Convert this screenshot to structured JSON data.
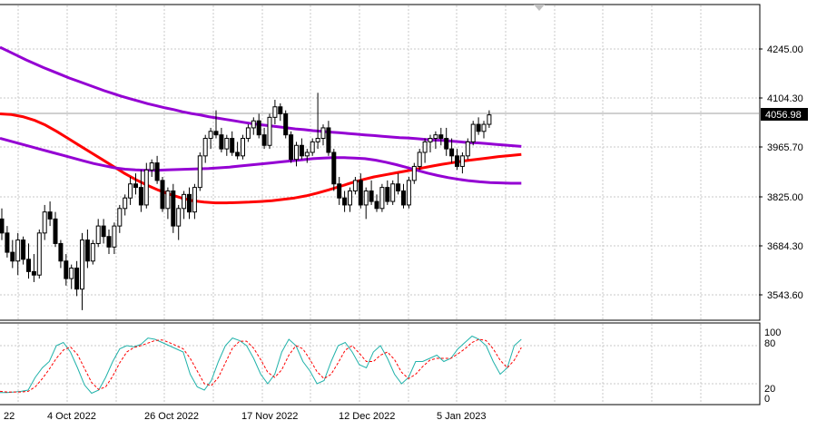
{
  "window": {
    "background": "#ffffff",
    "grid_color": "#c8c8c8",
    "frame_color": "#000000",
    "period_marker_icon": "triangle-down-icon"
  },
  "price_panel": {
    "y_axis_labels": [
      "4245.00",
      "4104.30",
      "3965.70",
      "3825.00",
      "3684.30",
      "3543.60"
    ],
    "current_price": "4056.98",
    "current_price_color": "#000000",
    "y_range": [
      3480,
      4330
    ],
    "candles": {
      "bull_color": "#ffffff",
      "bear_color": "#000000",
      "count": 98,
      "ohlc": [
        [
          3760,
          3790,
          3700,
          3720
        ],
        [
          3720,
          3740,
          3650,
          3665
        ],
        [
          3665,
          3700,
          3620,
          3640
        ],
        [
          3640,
          3720,
          3600,
          3700
        ],
        [
          3700,
          3710,
          3630,
          3645
        ],
        [
          3645,
          3690,
          3590,
          3610
        ],
        [
          3610,
          3660,
          3580,
          3600
        ],
        [
          3600,
          3730,
          3590,
          3720
        ],
        [
          3720,
          3800,
          3700,
          3780
        ],
        [
          3780,
          3810,
          3740,
          3760
        ],
        [
          3760,
          3780,
          3680,
          3690
        ],
        [
          3690,
          3700,
          3620,
          3640
        ],
        [
          3640,
          3660,
          3570,
          3590
        ],
        [
          3590,
          3630,
          3560,
          3620
        ],
        [
          3620,
          3640,
          3540,
          3560
        ],
        [
          3560,
          3720,
          3500,
          3700
        ],
        [
          3700,
          3730,
          3620,
          3640
        ],
        [
          3640,
          3700,
          3630,
          3690
        ],
        [
          3690,
          3760,
          3680,
          3740
        ],
        [
          3740,
          3760,
          3690,
          3710
        ],
        [
          3710,
          3730,
          3660,
          3680
        ],
        [
          3680,
          3750,
          3660,
          3740
        ],
        [
          3740,
          3800,
          3720,
          3790
        ],
        [
          3790,
          3830,
          3770,
          3820
        ],
        [
          3820,
          3880,
          3800,
          3860
        ],
        [
          3860,
          3890,
          3830,
          3850
        ],
        [
          3850,
          3900,
          3780,
          3800
        ],
        [
          3800,
          3920,
          3790,
          3900
        ],
        [
          3900,
          3930,
          3880,
          3920
        ],
        [
          3920,
          3940,
          3860,
          3870
        ],
        [
          3870,
          3880,
          3780,
          3790
        ],
        [
          3790,
          3850,
          3760,
          3840
        ],
        [
          3840,
          3860,
          3720,
          3740
        ],
        [
          3740,
          3800,
          3700,
          3790
        ],
        [
          3790,
          3840,
          3760,
          3830
        ],
        [
          3830,
          3850,
          3760,
          3780
        ],
        [
          3780,
          3860,
          3760,
          3850
        ],
        [
          3850,
          3950,
          3840,
          3940
        ],
        [
          3940,
          4000,
          3920,
          3990
        ],
        [
          3990,
          4020,
          3960,
          4010
        ],
        [
          4010,
          4070,
          3990,
          4000
        ],
        [
          4000,
          4020,
          3950,
          3960
        ],
        [
          3960,
          4000,
          3940,
          3990
        ],
        [
          3990,
          4010,
          3940,
          3950
        ],
        [
          3950,
          3980,
          3930,
          3940
        ],
        [
          3940,
          4000,
          3930,
          3990
        ],
        [
          3990,
          4030,
          3980,
          4020
        ],
        [
          4020,
          4050,
          4000,
          4040
        ],
        [
          4040,
          4060,
          3990,
          4000
        ],
        [
          4000,
          4020,
          3960,
          3970
        ],
        [
          3970,
          4060,
          3960,
          4050
        ],
        [
          4050,
          4100,
          4030,
          4080
        ],
        [
          4080,
          4090,
          4040,
          4060
        ],
        [
          4060,
          4070,
          3990,
          4000
        ],
        [
          4000,
          4010,
          3920,
          3930
        ],
        [
          3930,
          3980,
          3910,
          3970
        ],
        [
          3970,
          3990,
          3930,
          3940
        ],
        [
          3940,
          3960,
          3920,
          3950
        ],
        [
          3950,
          3990,
          3940,
          3980
        ],
        [
          3980,
          4120,
          3960,
          3990
        ],
        [
          3990,
          4030,
          3970,
          4020
        ],
        [
          4020,
          4040,
          3940,
          3950
        ],
        [
          3950,
          3960,
          3840,
          3860
        ],
        [
          3860,
          3880,
          3800,
          3820
        ],
        [
          3820,
          3840,
          3780,
          3800
        ],
        [
          3800,
          3850,
          3780,
          3840
        ],
        [
          3840,
          3880,
          3830,
          3870
        ],
        [
          3870,
          3890,
          3790,
          3800
        ],
        [
          3800,
          3850,
          3760,
          3840
        ],
        [
          3840,
          3870,
          3800,
          3810
        ],
        [
          3810,
          3830,
          3780,
          3790
        ],
        [
          3790,
          3860,
          3780,
          3850
        ],
        [
          3850,
          3870,
          3800,
          3810
        ],
        [
          3810,
          3870,
          3800,
          3860
        ],
        [
          3860,
          3890,
          3830,
          3840
        ],
        [
          3840,
          3860,
          3790,
          3800
        ],
        [
          3800,
          3880,
          3790,
          3870
        ],
        [
          3870,
          3920,
          3860,
          3910
        ],
        [
          3910,
          3960,
          3900,
          3950
        ],
        [
          3950,
          3990,
          3920,
          3980
        ],
        [
          3980,
          4000,
          3950,
          3990
        ],
        [
          3990,
          4010,
          3960,
          4000
        ],
        [
          4000,
          4020,
          3970,
          3990
        ],
        [
          3990,
          4020,
          3940,
          3960
        ],
        [
          3960,
          3990,
          3920,
          3940
        ],
        [
          3940,
          3960,
          3900,
          3910
        ],
        [
          3910,
          3950,
          3890,
          3940
        ],
        [
          3940,
          3990,
          3930,
          3980
        ],
        [
          3980,
          4040,
          3970,
          4030
        ],
        [
          4030,
          4050,
          4000,
          4010
        ],
        [
          4010,
          4040,
          3990,
          4030
        ],
        [
          4030,
          4070,
          4020,
          4057
        ]
      ]
    },
    "moving_averages": [
      {
        "color": "#9400d3",
        "points": [
          4250,
          4238,
          4226,
          4214,
          4203,
          4192,
          4182,
          4172,
          4162,
          4153,
          4144,
          4135,
          4126,
          4118,
          4110,
          4103,
          4096,
          4089,
          4083,
          4077,
          4072,
          4066,
          4061,
          4057,
          4052,
          4048,
          4044,
          4040,
          4036,
          4032,
          4029,
          4026,
          4023,
          4020,
          4017,
          4015,
          4012,
          4010,
          4008,
          4006,
          4004,
          4002,
          4000,
          3998,
          3996,
          3994,
          3992,
          3991,
          3989,
          3987,
          3985,
          3984,
          3982,
          3980,
          3978,
          3977,
          3975,
          3973,
          3971,
          3969,
          3967
        ]
      },
      {
        "color": "#ff0000",
        "points": [
          4060,
          4058,
          4052,
          4042,
          4028,
          4010,
          3990,
          3970,
          3950,
          3930,
          3910,
          3890,
          3872,
          3856,
          3842,
          3830,
          3820,
          3812,
          3808,
          3806,
          3806,
          3807,
          3808,
          3810,
          3812,
          3816,
          3820,
          3826,
          3834,
          3843,
          3853,
          3863,
          3872,
          3880,
          3886,
          3892,
          3898,
          3904,
          3910,
          3916,
          3921,
          3926,
          3930,
          3934,
          3938,
          3941,
          3944
        ]
      },
      {
        "color": "#9400d3",
        "points": [
          3990,
          3982,
          3974,
          3966,
          3958,
          3950,
          3942,
          3934,
          3926,
          3918,
          3912,
          3906,
          3902,
          3900,
          3899,
          3899,
          3900,
          3901,
          3902,
          3903,
          3904,
          3906,
          3908,
          3911,
          3914,
          3917,
          3920,
          3923,
          3926,
          3929,
          3932,
          3934,
          3935,
          3935,
          3934,
          3932,
          3928,
          3922,
          3915,
          3907,
          3899,
          3891,
          3884,
          3878,
          3873,
          3869,
          3866,
          3864,
          3863,
          3862,
          3862
        ]
      }
    ]
  },
  "oscillator_panel": {
    "y_axis_labels": [
      "100",
      "80",
      "20",
      "0"
    ],
    "main_line": {
      "color": "#20b2aa",
      "values": [
        6,
        6,
        7,
        8,
        10,
        30,
        45,
        55,
        80,
        85,
        70,
        45,
        18,
        5,
        10,
        30,
        55,
        75,
        80,
        78,
        82,
        92,
        90,
        85,
        80,
        75,
        70,
        35,
        15,
        10,
        25,
        55,
        80,
        92,
        88,
        80,
        60,
        35,
        20,
        35,
        70,
        90,
        80,
        55,
        40,
        20,
        25,
        55,
        80,
        85,
        70,
        50,
        45,
        70,
        80,
        60,
        35,
        20,
        30,
        55,
        55,
        60,
        65,
        55,
        60,
        75,
        85,
        95,
        90,
        80,
        55,
        35,
        45,
        80,
        90
      ]
    },
    "signal_line": {
      "color": "#ff0000",
      "values": [
        8,
        7,
        7,
        7,
        8,
        15,
        28,
        43,
        60,
        73,
        78,
        66,
        44,
        22,
        11,
        15,
        32,
        53,
        70,
        77,
        80,
        84,
        88,
        89,
        85,
        80,
        75,
        60,
        40,
        20,
        17,
        30,
        53,
        76,
        87,
        87,
        76,
        58,
        38,
        30,
        42,
        65,
        80,
        75,
        58,
        39,
        28,
        35,
        53,
        73,
        80,
        68,
        55,
        55,
        65,
        70,
        58,
        38,
        28,
        35,
        47,
        57,
        60,
        60,
        60,
        67,
        75,
        85,
        90,
        88,
        75,
        57,
        45,
        57,
        77
      ]
    }
  },
  "x_axis": {
    "labels": [
      {
        "text": "22",
        "x": 4
      },
      {
        "text": "4 Oct 2022",
        "x": 52
      },
      {
        "text": "26 Oct 2022",
        "x": 159
      },
      {
        "text": "17 Nov 2022",
        "x": 266
      },
      {
        "text": "12 Dec 2022",
        "x": 373
      },
      {
        "text": "5 Jan 2023",
        "x": 481
      }
    ]
  }
}
